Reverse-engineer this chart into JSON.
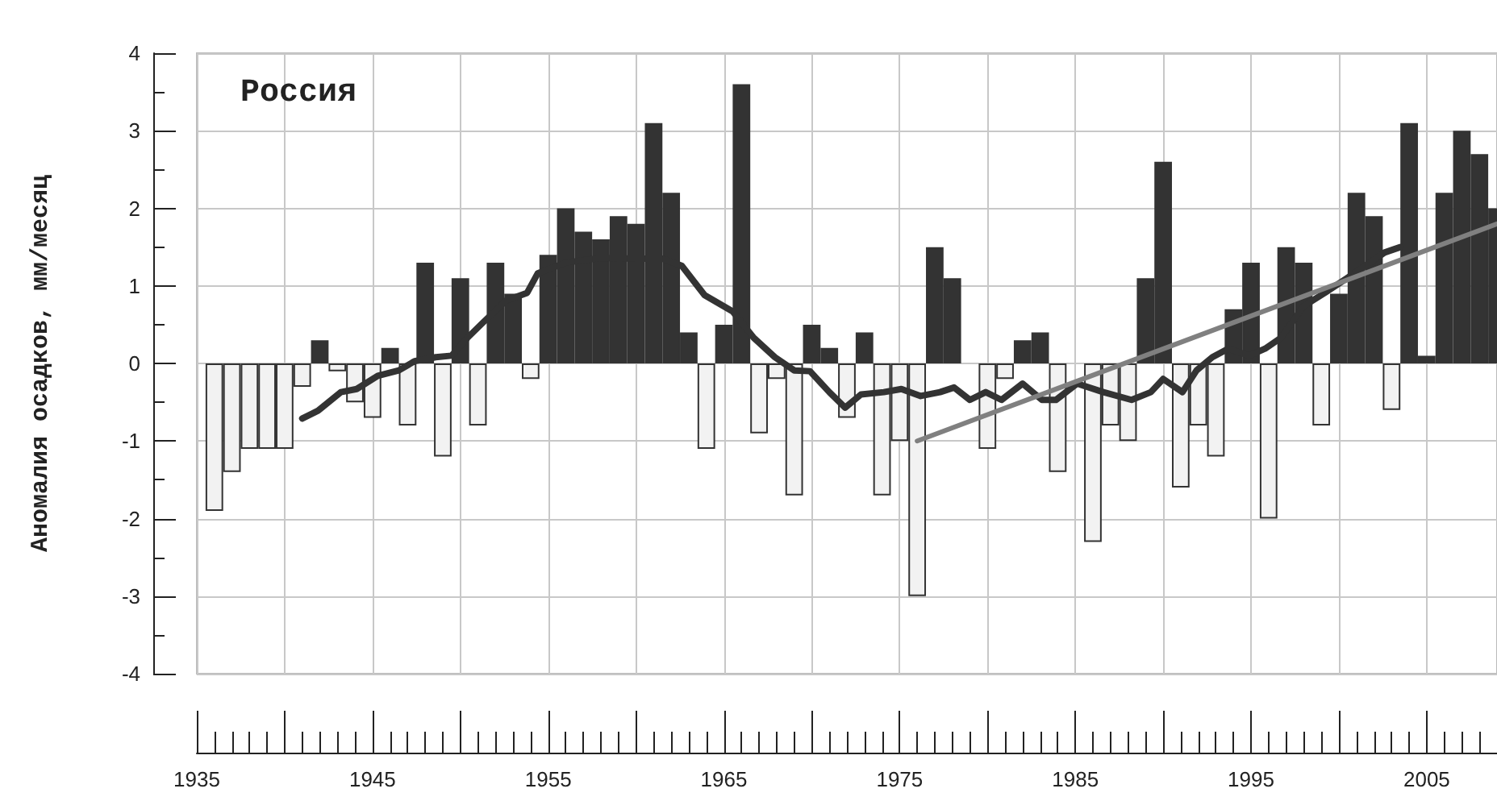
{
  "chart_data": {
    "type": "bar",
    "title": "Россия",
    "ylabel": "Аномалия осадков, мм/месяц",
    "xlim": [
      1935,
      2009
    ],
    "xticks": [
      1935,
      {
        "value": 1940,
        "label": null
      },
      1945,
      {
        "value": 1950,
        "label": null
      },
      1955,
      {
        "value": 1960,
        "label": null
      },
      1965,
      {
        "value": 1970,
        "label": null
      },
      1975,
      {
        "value": 1980,
        "label": null
      },
      1985,
      {
        "value": 1990,
        "label": null
      },
      1995,
      {
        "value": 2000,
        "label": null
      },
      2005
    ],
    "ylim": [
      -4,
      4
    ],
    "yticks": [
      -4,
      -3,
      -2,
      -1,
      0,
      1,
      2,
      3,
      4
    ],
    "grid": true,
    "series": [
      {
        "x": [
          1936,
          1937,
          1938,
          1939,
          1940,
          1941,
          1942,
          1943,
          1944,
          1945,
          1946,
          1947,
          1948,
          1949,
          1950,
          1951,
          1952,
          1953,
          1954,
          1955,
          1956,
          1957,
          1958,
          1959,
          1960,
          1961,
          1962,
          1963,
          1964,
          1965,
          1966,
          1967,
          1968,
          1969,
          1970,
          1971,
          1972,
          1973,
          1974,
          1975,
          1976,
          1977,
          1978,
          1979,
          1980,
          1981,
          1982,
          1983,
          1984,
          1985,
          1986,
          1987,
          1988,
          1989,
          1990,
          1991,
          1992,
          1993,
          1994,
          1995,
          1996,
          1997,
          1998,
          1999,
          2000,
          2001,
          2002,
          2003,
          2004,
          2005,
          2006,
          2007,
          2008,
          2009
        ],
        "values": [
          -1.9,
          -1.4,
          -1.1,
          -1.1,
          -1.1,
          -0.3,
          0.3,
          -0.1,
          -0.5,
          -0.7,
          0.2,
          -0.8,
          1.3,
          -1.2,
          1.1,
          -0.8,
          1.3,
          0.9,
          -0.2,
          1.4,
          2.0,
          1.7,
          1.6,
          1.9,
          1.8,
          3.1,
          2.2,
          0.4,
          -1.1,
          0.5,
          3.6,
          -0.9,
          -0.2,
          -1.7,
          0.5,
          0.2,
          -0.7,
          0.4,
          -1.7,
          -1.0,
          -3.0,
          1.5,
          1.1,
          null,
          -1.1,
          -0.2,
          0.3,
          0.4,
          -1.4,
          null,
          -2.3,
          -0.8,
          -1.0,
          1.1,
          2.6,
          -1.6,
          -0.8,
          -1.2,
          0.7,
          1.3,
          -2.0,
          1.5,
          1.3,
          -0.8,
          0.9,
          2.2,
          1.9,
          -0.6,
          3.1,
          0.1,
          2.2,
          3.0,
          2.7,
          2.0
        ],
        "colors": [
          "#f2f2f2",
          "#f2f2f2",
          "#f2f2f2",
          "#f2f2f2",
          "#f2f2f2",
          "#f2f2f2",
          "#333333",
          "#f2f2f2",
          "#f2f2f2",
          "#f2f2f2",
          "#333333",
          "#f2f2f2",
          "#333333",
          "#f2f2f2",
          "#333333",
          "#f2f2f2",
          "#333333",
          "#333333",
          "#f2f2f2",
          "#333333",
          "#333333",
          "#333333",
          "#333333",
          "#333333",
          "#333333",
          "#333333",
          "#333333",
          "#333333",
          "#f2f2f2",
          "#333333",
          "#333333",
          "#f2f2f2",
          "#f2f2f2",
          "#f2f2f2",
          "#333333",
          "#333333",
          "#f2f2f2",
          "#333333",
          "#f2f2f2",
          "#f2f2f2",
          "#f2f2f2",
          "#333333",
          "#333333",
          "#333333",
          "#f2f2f2",
          "#f2f2f2",
          "#333333",
          "#333333",
          "#f2f2f2",
          "#f2f2f2",
          "#f2f2f2",
          "#f2f2f2",
          "#f2f2f2",
          "#333333",
          "#333333",
          "#f2f2f2",
          "#f2f2f2",
          "#f2f2f2",
          "#333333",
          "#333333",
          "#f2f2f2",
          "#333333",
          "#333333",
          "#f2f2f2",
          "#333333",
          "#333333",
          "#333333",
          "#f2f2f2",
          "#333333",
          "#333333",
          "#333333",
          "#333333",
          "#333333",
          "#333333"
        ]
      },
      {
        "type": "line",
        "color": "#333333",
        "x": [
          1941.0,
          1941.9,
          1943.2,
          1944.1,
          1945.3,
          1946.5,
          1947.4,
          1948.6,
          1949.5,
          1950.4,
          1951.3,
          1952.6,
          1953.8,
          1954.4,
          1956,
          1958,
          1960,
          1961.5,
          1962.6,
          1963.9,
          1965.5,
          1966.7,
          1967.9,
          1969.0,
          1969.9,
          1971.0,
          1971.9,
          1972.8,
          1974.1,
          1975.1,
          1976.2,
          1977.3,
          1978.1,
          1979.0,
          1979.9,
          1980.8,
          1982.0,
          1983.1,
          1983.9,
          1985.1,
          1986.6,
          1988.2,
          1989.3,
          1990.0,
          1991.1,
          1991.9,
          1992.8,
          1993.7,
          1994.9,
          1995.8,
          1996.7,
          1998.0,
          1999.2,
          2000.4,
          2001.7,
          2002.6,
          2003.5
        ],
        "values": [
          -0.71,
          -0.61,
          -0.37,
          -0.33,
          -0.16,
          -0.09,
          0.03,
          0.08,
          0.1,
          0.33,
          0.53,
          0.81,
          0.91,
          1.16,
          1.3,
          1.36,
          1.35,
          1.35,
          1.26,
          0.88,
          0.67,
          0.33,
          0.08,
          -0.09,
          -0.1,
          -0.37,
          -0.57,
          -0.4,
          -0.37,
          -0.33,
          -0.42,
          -0.37,
          -0.31,
          -0.47,
          -0.37,
          -0.47,
          -0.26,
          -0.47,
          -0.47,
          -0.26,
          -0.37,
          -0.47,
          -0.37,
          -0.2,
          -0.37,
          -0.09,
          0.08,
          0.19,
          0.1,
          0.19,
          0.33,
          0.74,
          0.91,
          1.09,
          1.29,
          1.43,
          1.5
        ]
      },
      {
        "type": "line",
        "color": "#808080",
        "x": [
          1976,
          2009
        ],
        "values": [
          -1.0,
          1.8
        ]
      }
    ]
  }
}
